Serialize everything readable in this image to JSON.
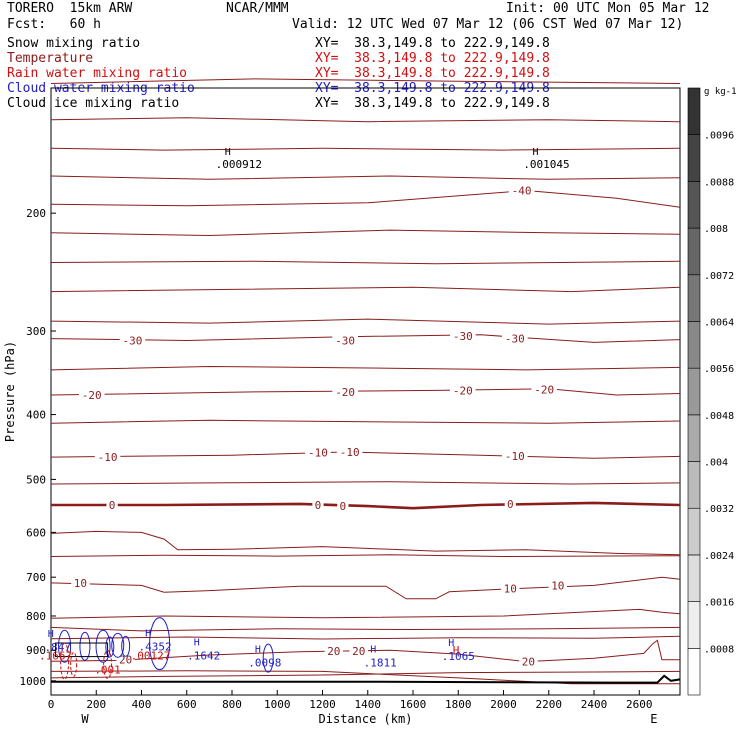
{
  "header": {
    "model": "TORERO  15km ARW",
    "org": "NCAR/MMM",
    "init": "Init: 00 UTC Mon 05 Mar 12",
    "fcst": "Fcst:   60 h",
    "valid": "Valid: 12 UTC Wed 07 Mar 12 (06 CST Wed 07 Mar 12)"
  },
  "legend": [
    {
      "name": "Snow mixing ratio",
      "xy": "XY=  38.3,149.8 to 222.9,149.8",
      "color": "#000000"
    },
    {
      "name": "Temperature",
      "xy": "XY=  38.3,149.8 to 222.9,149.8",
      "color": "#8a1c1c"
    },
    {
      "name": "Rain water mixing ratio",
      "xy": "XY=  38.3,149.8 to 222.9,149.8",
      "color": "#d01010"
    },
    {
      "name": "Cloud water mixing ratio",
      "xy": "XY=  38.3,149.8 to 222.9,149.8",
      "color": "#2020c8"
    },
    {
      "name": "Cloud ice mixing ratio",
      "xy": "XY=  38.3,149.8 to 222.9,149.8",
      "color": "#000000"
    }
  ],
  "chart_data": {
    "type": "cross-section",
    "xlabel": "Distance (km)",
    "ylabel": "Pressure (hPa)",
    "xlim": [
      0,
      2780
    ],
    "ylim": [
      1050,
      130
    ],
    "x_ticks": [
      0,
      200,
      400,
      600,
      800,
      1000,
      1200,
      1400,
      1600,
      1800,
      2000,
      2200,
      2400,
      2600
    ],
    "y_ticks": [
      200,
      300,
      400,
      500,
      600,
      700,
      800,
      900,
      1000
    ],
    "end_labels": {
      "left": "W",
      "right": "E"
    },
    "colorbar": {
      "units": "g kg-1",
      "values": [
        ".0008",
        ".0016",
        ".0024",
        ".0032",
        ".004",
        ".0048",
        ".0056",
        ".0064",
        ".0072",
        ".008",
        ".0088",
        ".0096"
      ]
    },
    "temperature_labels": [
      {
        "x": 2080,
        "p": 185,
        "text": "-40"
      },
      {
        "x": 360,
        "p": 310,
        "text": "-30"
      },
      {
        "x": 1300,
        "p": 310,
        "text": "-30"
      },
      {
        "x": 1820,
        "p": 305,
        "text": "-30"
      },
      {
        "x": 2050,
        "p": 308,
        "text": "-30"
      },
      {
        "x": 180,
        "p": 374,
        "text": "-20"
      },
      {
        "x": 1300,
        "p": 370,
        "text": "-20"
      },
      {
        "x": 1820,
        "p": 368,
        "text": "-20"
      },
      {
        "x": 2180,
        "p": 367,
        "text": "-20"
      },
      {
        "x": 250,
        "p": 463,
        "text": "-10"
      },
      {
        "x": 1180,
        "p": 456,
        "text": "-10"
      },
      {
        "x": 1320,
        "p": 455,
        "text": "-10"
      },
      {
        "x": 2050,
        "p": 461,
        "text": "-10"
      },
      {
        "x": 270,
        "p": 546,
        "text": "0"
      },
      {
        "x": 1180,
        "p": 546,
        "text": "0"
      },
      {
        "x": 1290,
        "p": 548,
        "text": "0"
      },
      {
        "x": 2030,
        "p": 544,
        "text": "0"
      },
      {
        "x": 130,
        "p": 714,
        "text": "10"
      },
      {
        "x": 2030,
        "p": 728,
        "text": "10"
      },
      {
        "x": 2240,
        "p": 720,
        "text": "10"
      },
      {
        "x": 1250,
        "p": 903,
        "text": "20"
      },
      {
        "x": 1360,
        "p": 903,
        "text": "20"
      },
      {
        "x": 2110,
        "p": 935,
        "text": "20"
      },
      {
        "x": 330,
        "p": 929,
        "text": "20"
      }
    ],
    "snow_maxima": [
      {
        "x": 830,
        "p": 169,
        "text": ".000912"
      },
      {
        "x": 2190,
        "p": 169,
        "text": ".001045"
      }
    ],
    "rain_labels": [
      {
        "x": 20,
        "p": 916,
        "text": ".1667"
      },
      {
        "x": 440,
        "p": 916,
        "text": ".00127"
      },
      {
        "x": 250,
        "p": 962,
        "text": ".001"
      },
      {
        "x": 1790,
        "p": 900,
        "text": "H"
      }
    ],
    "cloud_water_labels": [
      {
        "x": 30,
        "p": 890,
        "text": ".847"
      },
      {
        "x": 460,
        "p": 889,
        "text": ".4352"
      },
      {
        "x": 675,
        "p": 917,
        "text": ".1642"
      },
      {
        "x": 945,
        "p": 939,
        "text": ".0098"
      },
      {
        "x": 1455,
        "p": 939,
        "text": ".1811"
      },
      {
        "x": 1800,
        "p": 918,
        "text": ".1065"
      }
    ]
  }
}
